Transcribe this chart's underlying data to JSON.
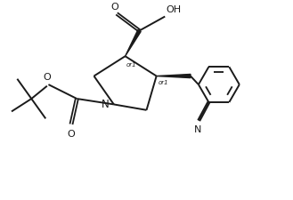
{
  "bg_color": "#ffffff",
  "line_color": "#1a1a1a",
  "lw": 1.4,
  "fs": 7.5,
  "figsize": [
    3.29,
    2.26
  ],
  "dpi": 100,
  "xlim": [
    0,
    10
  ],
  "ylim": [
    0,
    7
  ]
}
